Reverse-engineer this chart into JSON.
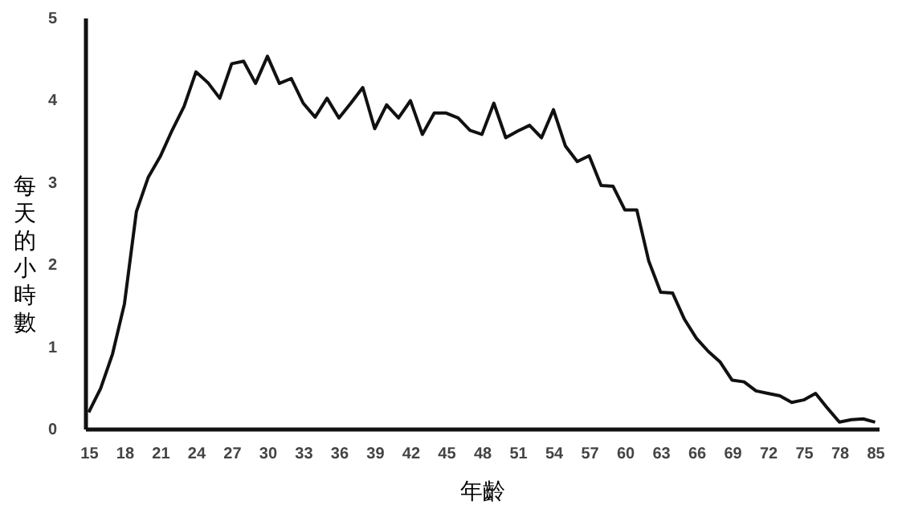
{
  "chart_data": {
    "type": "line",
    "xlabel": "年齡",
    "ylabel": "每天的小時數",
    "categories": [
      "15",
      null,
      null,
      "18",
      null,
      null,
      "21",
      null,
      null,
      "24",
      null,
      null,
      "27",
      null,
      null,
      "30",
      null,
      null,
      "33",
      null,
      null,
      "36",
      null,
      null,
      "39",
      null,
      null,
      "42",
      null,
      null,
      "45",
      null,
      null,
      "48",
      null,
      null,
      "51",
      null,
      null,
      "54",
      null,
      null,
      "57",
      null,
      null,
      "60",
      null,
      null,
      "63",
      null,
      null,
      "66",
      null,
      null,
      "69",
      null,
      null,
      "72",
      null,
      null,
      "75",
      null,
      null,
      "78",
      null,
      null,
      "85"
    ],
    "series": [
      {
        "color": "#111111",
        "values": [
          0.2,
          0.49,
          0.91,
          1.52,
          2.64,
          3.06,
          3.31,
          3.63,
          3.92,
          4.34,
          4.21,
          4.02,
          4.44,
          4.47,
          4.2,
          4.53,
          4.2,
          4.26,
          3.96,
          3.79,
          4.02,
          3.78,
          3.96,
          4.15,
          3.65,
          3.94,
          3.78,
          3.99,
          3.58,
          3.84,
          3.84,
          3.78,
          3.63,
          3.58,
          3.96,
          3.54,
          3.62,
          3.69,
          3.54,
          3.88,
          3.44,
          3.25,
          3.32,
          2.96,
          2.95,
          2.66,
          2.66,
          2.04,
          1.66,
          1.65,
          1.33,
          1.1,
          0.94,
          0.81,
          0.59,
          0.57,
          0.46,
          0.43,
          0.4,
          0.32,
          0.35,
          0.43,
          0.25,
          0.08,
          0.11,
          0.12,
          0.08
        ]
      }
    ],
    "ylim": [
      0,
      5
    ],
    "yticks": [
      0,
      1,
      2,
      3,
      4,
      5
    ],
    "grid": false,
    "marker": "none",
    "line_style": "solid"
  }
}
